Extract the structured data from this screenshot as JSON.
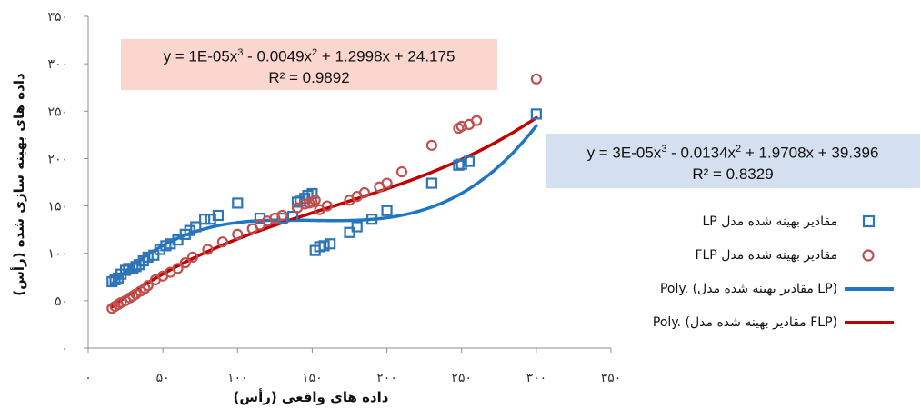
{
  "chart_data": {
    "type": "scatter",
    "title": "",
    "xlabel": "داده های واقعی (رأس)",
    "ylabel": "داده های بهینه سازی شده (رأس)",
    "xlim": [
      0,
      350
    ],
    "ylim": [
      0,
      350
    ],
    "x_tick_labels": [
      "۰",
      "۵۰",
      "۱۰۰",
      "۱۵۰",
      "۲۰۰",
      "۲۵۰",
      "۳۰۰",
      "۳۵۰"
    ],
    "y_tick_labels": [
      "۰",
      "۵۰",
      "۱۰۰",
      "۱۵۰",
      "۲۰۰",
      "۲۵۰",
      "۳۰۰",
      "۳۵۰"
    ],
    "series": [
      {
        "name": "مقادیر بهینه شده مدل LP",
        "marker": "square",
        "color": "#2e75b6",
        "x": [
          16,
          18,
          20,
          22,
          25,
          27,
          30,
          32,
          34,
          37,
          40,
          44,
          48,
          52,
          55,
          60,
          65,
          68,
          72,
          78,
          82,
          87,
          100,
          115,
          130,
          137,
          140,
          142,
          145,
          147,
          150,
          152,
          155,
          158,
          162,
          175,
          180,
          190,
          200,
          230,
          248,
          250,
          255,
          300
        ],
        "y": [
          70,
          72,
          74,
          78,
          82,
          84,
          84,
          86,
          88,
          92,
          96,
          98,
          104,
          108,
          110,
          114,
          120,
          124,
          128,
          136,
          136,
          140,
          153,
          137,
          137,
          139,
          154,
          155,
          158,
          161,
          163,
          103,
          107,
          108,
          110,
          122,
          128,
          136,
          145,
          174,
          193,
          194,
          197,
          247
        ]
      },
      {
        "name": "مقادیر بهینه شده مدل FLP",
        "marker": "circle",
        "color": "#c0504d",
        "x": [
          16,
          18,
          20,
          22,
          25,
          28,
          30,
          32,
          35,
          38,
          40,
          45,
          50,
          55,
          60,
          65,
          70,
          80,
          90,
          100,
          110,
          115,
          120,
          125,
          130,
          140,
          145,
          148,
          150,
          152,
          155,
          160,
          175,
          180,
          185,
          195,
          200,
          210,
          230,
          248,
          250,
          255,
          260,
          300
        ],
        "y": [
          42,
          44,
          46,
          48,
          50,
          53,
          55,
          57,
          60,
          63,
          66,
          72,
          76,
          80,
          84,
          90,
          96,
          104,
          112,
          120,
          126,
          130,
          134,
          137,
          140,
          148,
          152,
          153,
          154,
          156,
          146,
          150,
          156,
          160,
          164,
          170,
          174,
          186,
          214,
          232,
          234,
          236,
          240,
          284
        ]
      },
      {
        "name": "Poly. (مقادیر بهینه شده مدل LP)",
        "type": "line",
        "color": "#1f77c4",
        "fit": "poly3",
        "coefficients": [
          3e-05,
          -0.0134,
          1.9708,
          39.396
        ],
        "x_range": [
          16,
          300
        ],
        "equation": "y = 3E-05x³ - 0.0134x² + 1.9708x + 39.396",
        "r2": "R² = 0.8329"
      },
      {
        "name": "Poly. (مقادیر بهینه شده مدل FLP)",
        "type": "line",
        "color": "#c00000",
        "fit": "poly3",
        "coefficients": [
          1e-05,
          -0.0049,
          1.2998,
          24.175
        ],
        "x_range": [
          16,
          300
        ],
        "equation": "y = 1E-05x³ - 0.0049x² + 1.2998x + 24.175",
        "r2": "R² = 0.9892"
      }
    ],
    "legend_position": "right",
    "grid": false
  },
  "equations": {
    "flp": {
      "line1_a": "y = 1E-05x",
      "line1_b": " - 0.0049x",
      "line1_c": " + 1.2998x + 24.175",
      "r2": "R² = 0.9892",
      "bg": "#fbd6cf"
    },
    "lp": {
      "line1_a": "y = 3E-05x",
      "line1_b": " - 0.0134x",
      "line1_c": " + 1.9708x + 39.396",
      "r2": "R² = 0.8329",
      "bg": "#d4dff0"
    }
  },
  "legend": [
    {
      "label": "مقادیر بهینه شده مدل LP"
    },
    {
      "label": "مقادیر بهینه شده مدل FLP"
    },
    {
      "label": "Poly. (مقادیر بهینه شده مدل LP)"
    },
    {
      "label": "Poly. (مقادیر بهینه شده مدل FLP)"
    }
  ]
}
